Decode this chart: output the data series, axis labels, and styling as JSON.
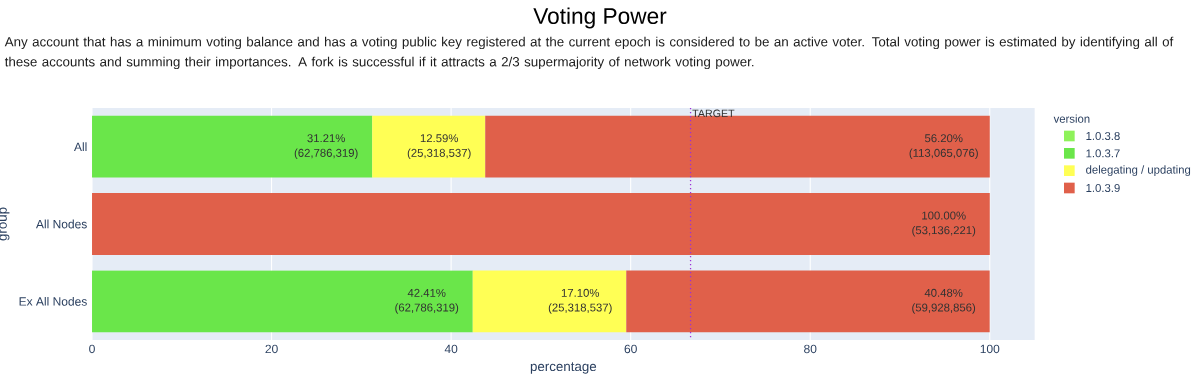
{
  "chart_data": {
    "type": "bar",
    "orientation": "horizontal",
    "stacked": true,
    "title": "Voting Power",
    "subtitle": "Any account that has a minimum voting balance and has a voting public key registered at the current epoch is considered to be an active voter. Total voting power is estimated by identifying all of these accounts and summing their importances. A fork is successful if it attracts a 2/3 supermajority of network voting power.",
    "xlabel": "percentage",
    "ylabel": "group",
    "legend_title": "version",
    "legend": "top right",
    "grid": "x",
    "categories": [
      "All",
      "All Nodes",
      "Ex All Nodes"
    ],
    "series": [
      {
        "name": "1.0.3.8",
        "color": "#8ef25a",
        "values": [
          null,
          null,
          null
        ]
      },
      {
        "name": "1.0.3.7",
        "color": "#6ae64a",
        "values": [
          31.21,
          null,
          42.41
        ],
        "value_labels": [
          "31.21% (62,786,319)",
          null,
          "42.41% (62,786,319)"
        ]
      },
      {
        "name": "delegating / updating",
        "color": "#ffff55",
        "values": [
          12.59,
          null,
          17.1
        ],
        "value_labels": [
          "12.59% (25,318,537)",
          null,
          "17.10% (25,318,537)"
        ]
      },
      {
        "name": "1.0.3.9",
        "color": "#e0604a",
        "values": [
          56.2,
          100.0,
          40.48
        ],
        "value_labels": [
          "56.20% (113,065,076)",
          "100.00% (53,136,221)",
          "40.48% (59,928,856)"
        ]
      }
    ],
    "xlim": [
      0,
      105
    ],
    "xticks": [
      0,
      20,
      40,
      60,
      80,
      100
    ],
    "ref_lines": [
      {
        "axis": "x",
        "value": 66.67,
        "label": "TARGET",
        "color": "#9b30d9",
        "line_style": "dotted"
      }
    ]
  }
}
